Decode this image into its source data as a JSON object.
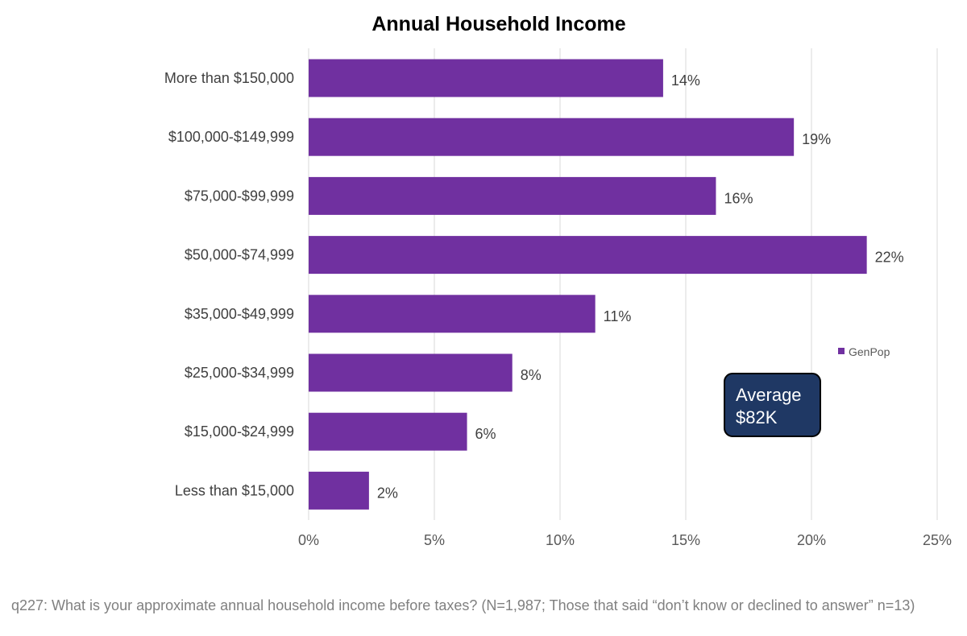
{
  "chart_data": {
    "type": "bar",
    "orientation": "horizontal",
    "title": "Annual Household Income",
    "categories": [
      "More than $150,000",
      "$100,000-$149,999",
      "$75,000-$99,999",
      "$50,000-$74,999",
      "$35,000-$49,999",
      "$25,000-$34,999",
      "$15,000-$24,999",
      "Less than $15,000"
    ],
    "series": [
      {
        "name": "GenPop",
        "color": "#7030a0",
        "values": [
          14.1,
          19.3,
          16.2,
          22.2,
          11.4,
          8.1,
          6.3,
          2.4
        ],
        "labels": [
          "14%",
          "19%",
          "16%",
          "22%",
          "11%",
          "8%",
          "6%",
          "2%"
        ]
      }
    ],
    "xlim": [
      0,
      25
    ],
    "xticks": [
      0,
      5,
      10,
      15,
      20,
      25
    ],
    "xtick_labels": [
      "0%",
      "5%",
      "10%",
      "15%",
      "20%",
      "25%"
    ],
    "xlabel": "",
    "ylabel": "",
    "grid": "vertical",
    "legend": {
      "placement": "right",
      "label": "GenPop"
    },
    "annotation": {
      "lines": [
        "Average",
        "$82K"
      ],
      "fill": "#1f3864",
      "border": "#000000"
    }
  },
  "footnote": "q227: What is your approximate annual household income before taxes? (N=1,987; Those that said “don’t know or declined to answer” n=13)"
}
